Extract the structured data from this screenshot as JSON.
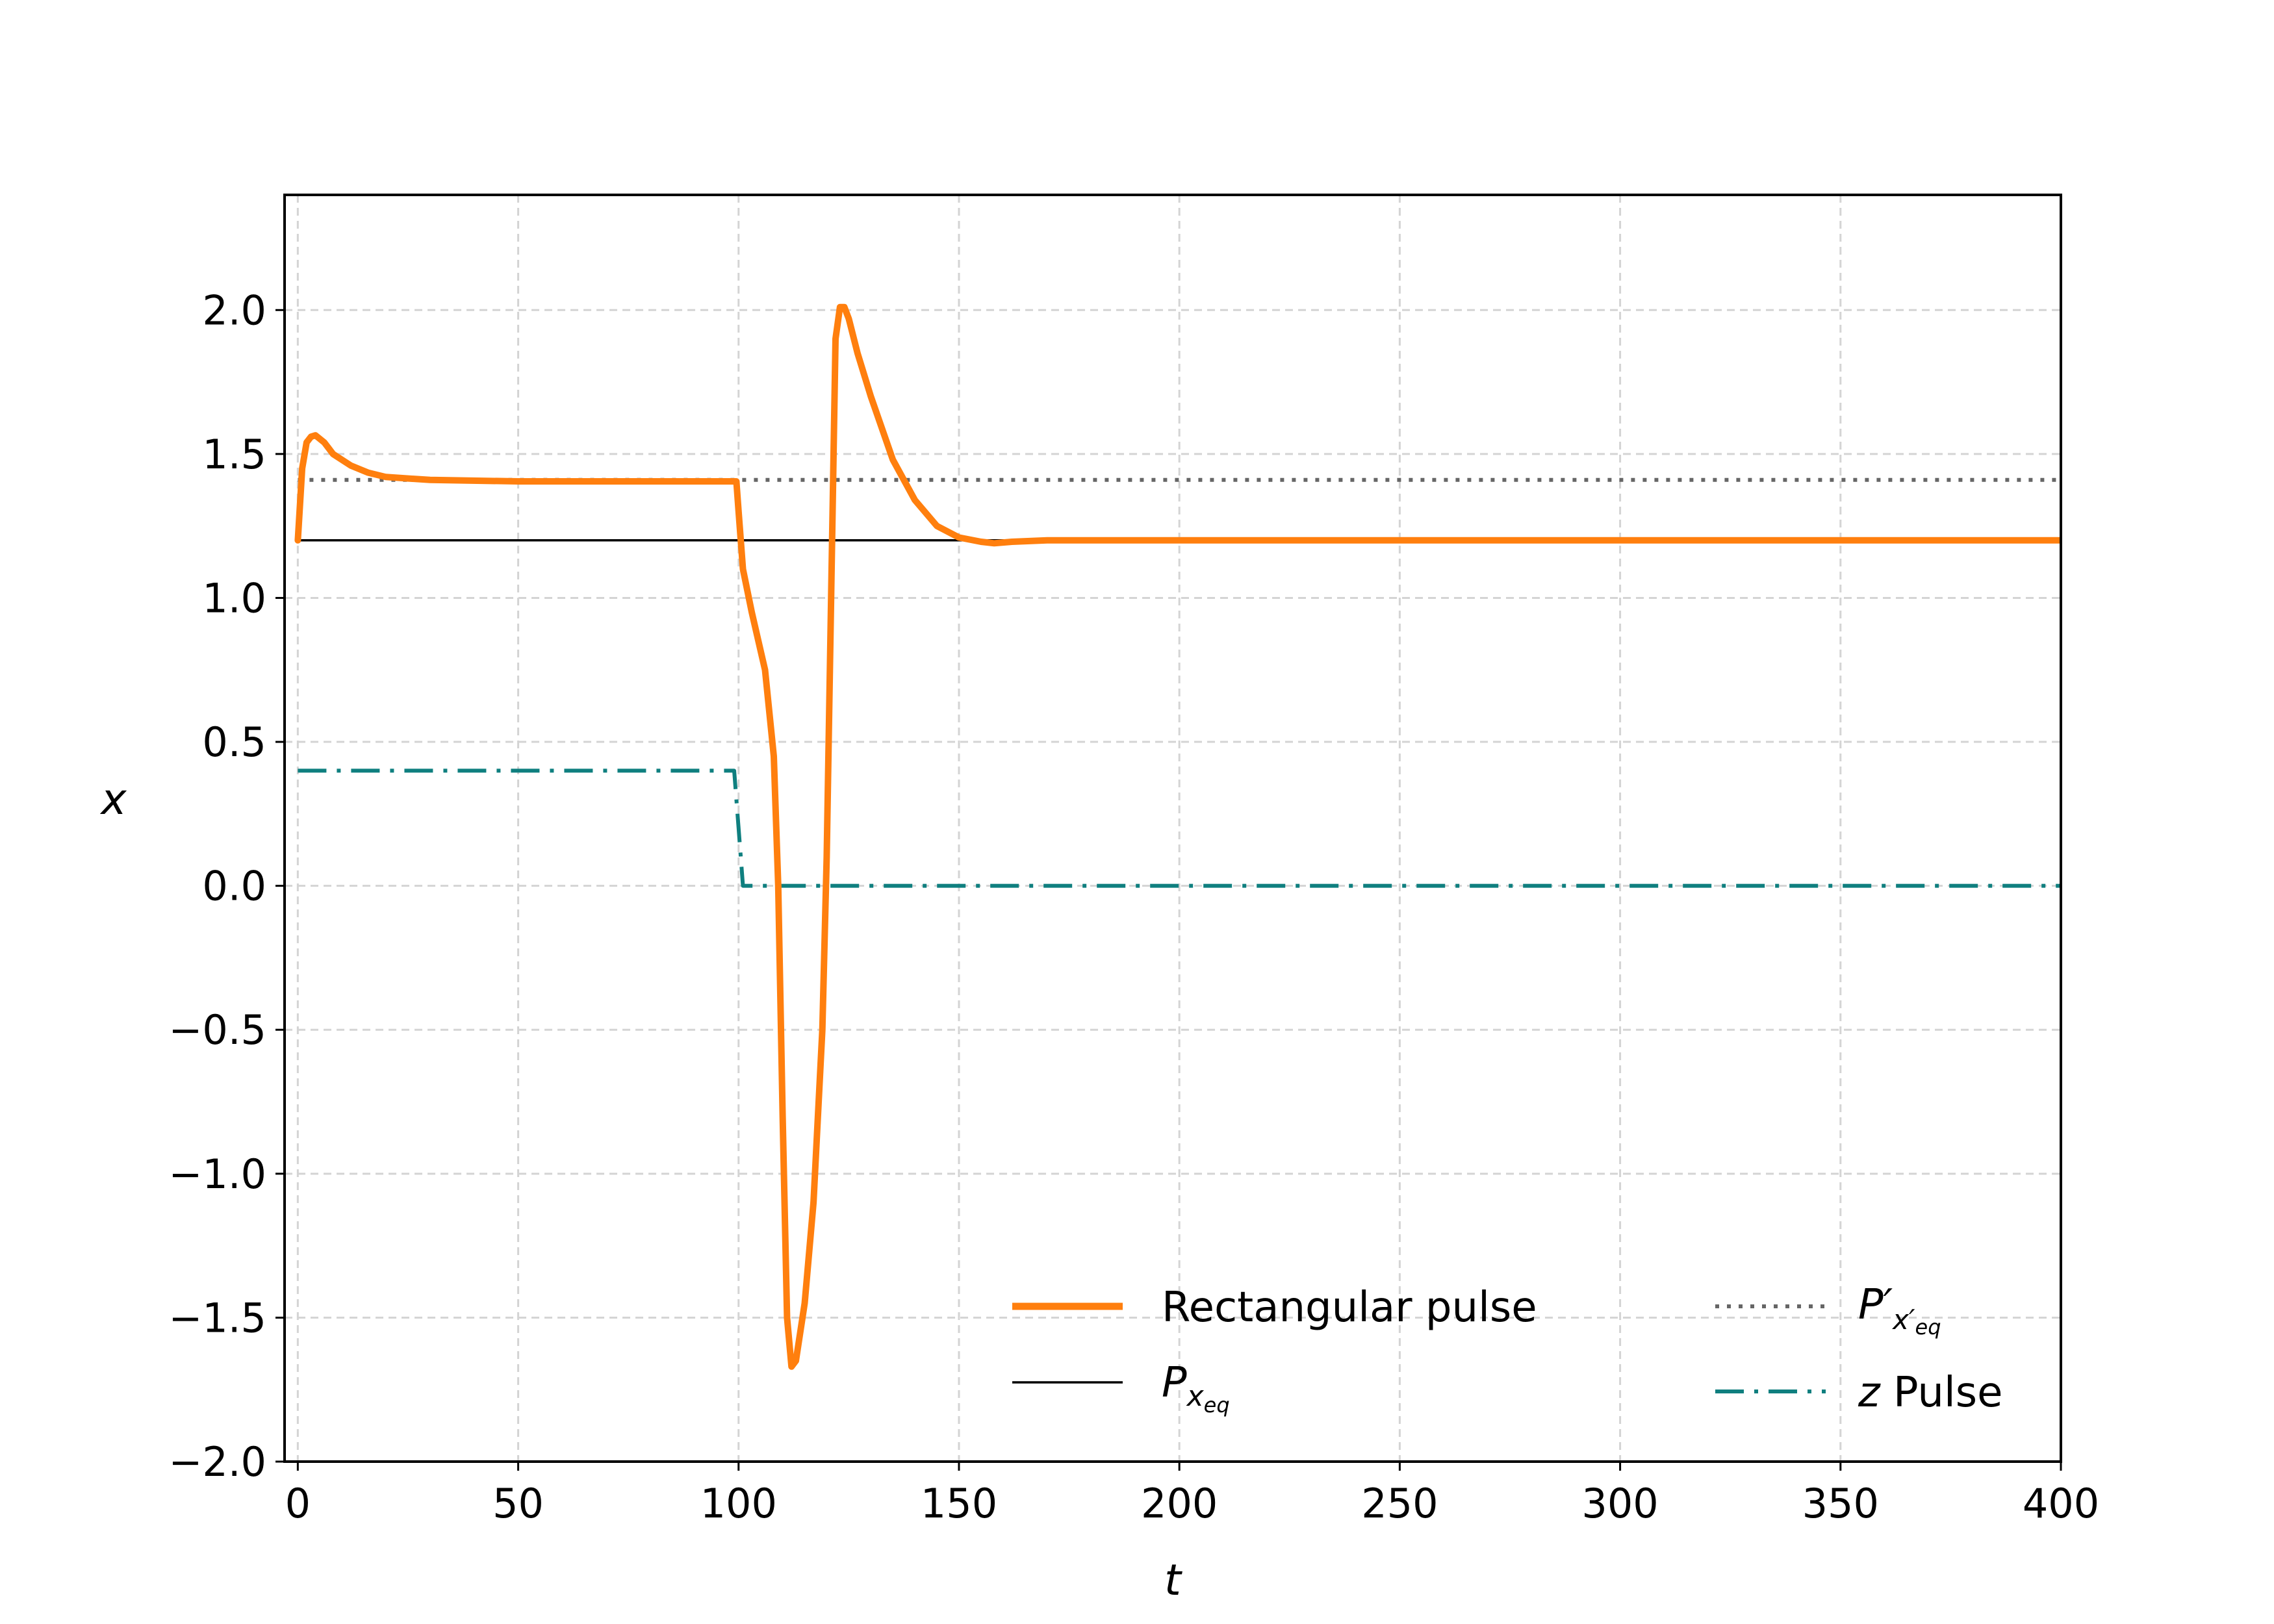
{
  "chart_data": {
    "type": "line",
    "xlabel": "t",
    "ylabel": "x",
    "xlim": [
      -3,
      400
    ],
    "ylim": [
      -2.0,
      2.4
    ],
    "x_ticks": [
      0,
      50,
      100,
      150,
      200,
      250,
      300,
      350,
      400
    ],
    "y_ticks": [
      -2.0,
      -1.5,
      -1.0,
      -0.5,
      0.0,
      0.5,
      1.0,
      1.5,
      2.0
    ],
    "x_tick_labels": [
      "0",
      "50",
      "100",
      "150",
      "200",
      "250",
      "300",
      "350",
      "400"
    ],
    "y_tick_labels": [
      "−2.0",
      "−1.5",
      "−1.0",
      "−0.5",
      "0.0",
      "0.5",
      "1.0",
      "1.5",
      "2.0"
    ],
    "grid": true,
    "legend_position": "bottom-right",
    "series": [
      {
        "name": "Rectangular pulse",
        "color": "#ff7f0e",
        "style": "solid",
        "x": [
          0,
          1,
          2,
          3,
          4,
          6,
          8,
          12,
          16,
          20,
          30,
          50,
          99.5,
          100,
          101,
          103,
          106,
          108,
          109,
          110,
          111,
          112,
          113,
          115,
          117,
          119,
          120,
          121,
          122,
          123,
          124,
          125,
          127,
          130,
          135,
          140,
          145,
          150,
          155,
          158,
          162,
          170,
          200,
          300,
          400
        ],
        "y": [
          1.2,
          1.45,
          1.54,
          1.56,
          1.565,
          1.54,
          1.5,
          1.46,
          1.435,
          1.42,
          1.41,
          1.405,
          1.405,
          1.3,
          1.1,
          0.95,
          0.75,
          0.45,
          0.0,
          -0.8,
          -1.5,
          -1.67,
          -1.65,
          -1.45,
          -1.1,
          -0.5,
          0.1,
          1.0,
          1.9,
          2.01,
          2.01,
          1.97,
          1.85,
          1.7,
          1.48,
          1.34,
          1.25,
          1.21,
          1.195,
          1.19,
          1.195,
          1.2,
          1.2,
          1.2,
          1.2
        ]
      },
      {
        "name": "P_x_eq",
        "color": "#000000",
        "style": "solid",
        "x": [
          0,
          400
        ],
        "y": [
          1.2,
          1.2
        ]
      },
      {
        "name": "P'_x'_eq",
        "color": "#666666",
        "style": "dotted",
        "x": [
          0,
          400
        ],
        "y": [
          1.41,
          1.41
        ]
      },
      {
        "name": "z Pulse",
        "color": "#0f7f7f",
        "style": "dashdot",
        "x": [
          0,
          99,
          100,
          101,
          400
        ],
        "y": [
          0.4,
          0.4,
          0.2,
          0.0,
          0.0
        ]
      }
    ]
  },
  "legend": {
    "rectangular": "Rectangular pulse",
    "p_main": "P",
    "p_sub": "x",
    "p_subsub": "eq",
    "pprime_main": "P′",
    "pprime_sub": "x′",
    "pprime_subsub": "eq",
    "z_italic": "z",
    "z_rest": " Pulse"
  }
}
